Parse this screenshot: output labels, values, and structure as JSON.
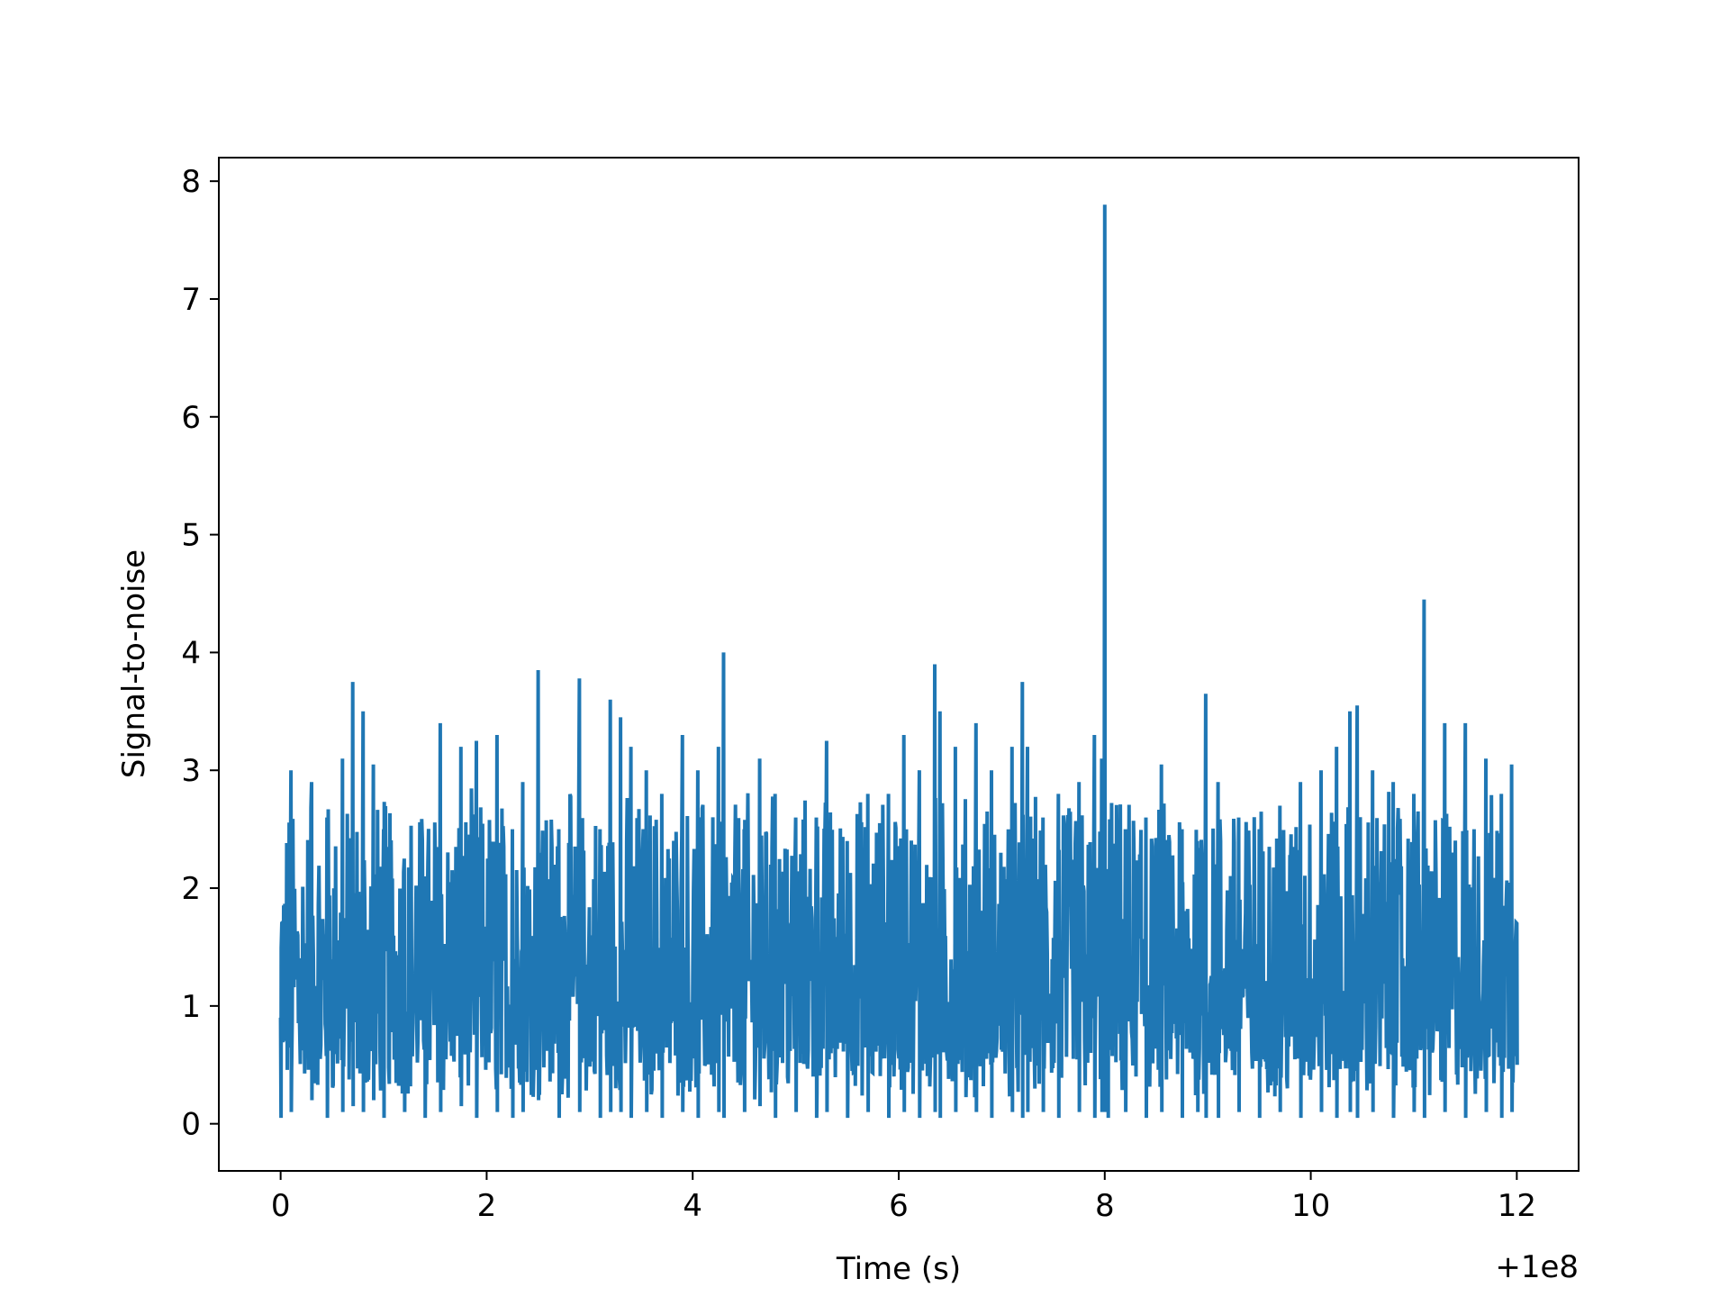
{
  "chart_data": {
    "type": "line",
    "title": "",
    "xlabel": "Time (s)",
    "ylabel": "Signal-to-noise",
    "x_offset_text": "+1e8",
    "x_offset": 100000000,
    "xlim": [
      -0.6,
      12.6
    ],
    "ylim": [
      -0.4,
      8.2
    ],
    "xticks": [
      0,
      2,
      4,
      6,
      8,
      10,
      12
    ],
    "xtick_labels": [
      "0",
      "2",
      "4",
      "6",
      "8",
      "10",
      "12"
    ],
    "yticks": [
      0,
      1,
      2,
      3,
      4,
      5,
      6,
      7,
      8
    ],
    "ytick_labels": [
      "0",
      "1",
      "2",
      "3",
      "4",
      "5",
      "6",
      "7",
      "8"
    ],
    "grid": false,
    "color": "#1f77b4",
    "series": [
      {
        "x": [
          0.0,
          0.1,
          0.3,
          0.45,
          0.6,
          0.7,
          0.8,
          0.9,
          1.0,
          1.2,
          1.4,
          1.55,
          1.75,
          1.9,
          2.1,
          2.25,
          2.35,
          2.5,
          2.7,
          2.9,
          3.1,
          3.2,
          3.3,
          3.4,
          3.55,
          3.7,
          3.9,
          4.05,
          4.25,
          4.3,
          4.5,
          4.65,
          4.8,
          5.0,
          5.2,
          5.3,
          5.5,
          5.7,
          5.9,
          6.05,
          6.2,
          6.35,
          6.4,
          6.55,
          6.75,
          6.9,
          7.1,
          7.2,
          7.25,
          7.4,
          7.55,
          7.75,
          7.9,
          7.97,
          8.0,
          8.03,
          8.2,
          8.4,
          8.55,
          8.75,
          8.9,
          8.98,
          9.1,
          9.3,
          9.5,
          9.7,
          9.9,
          10.1,
          10.25,
          10.38,
          10.45,
          10.6,
          10.8,
          11.0,
          11.1,
          11.3,
          11.5,
          11.7,
          11.85,
          11.95,
          12.0
        ],
        "y": [
          0.9,
          3.0,
          2.9,
          2.6,
          3.1,
          3.75,
          3.5,
          3.05,
          2.5,
          2.25,
          2.1,
          3.4,
          3.2,
          3.25,
          3.3,
          2.5,
          2.9,
          3.85,
          2.5,
          3.78,
          2.5,
          3.6,
          3.45,
          3.2,
          3.0,
          2.8,
          3.3,
          3.0,
          3.2,
          4.0,
          2.5,
          3.1,
          2.8,
          2.6,
          2.6,
          3.25,
          2.4,
          2.8,
          2.8,
          3.3,
          3.0,
          3.9,
          3.5,
          3.2,
          3.4,
          3.0,
          3.2,
          3.75,
          3.2,
          2.6,
          2.8,
          2.9,
          3.3,
          3.1,
          7.8,
          1.5,
          2.5,
          2.6,
          3.05,
          2.5,
          2.4,
          3.65,
          2.9,
          2.6,
          2.5,
          2.7,
          2.9,
          3.0,
          3.2,
          3.5,
          3.55,
          3.0,
          2.9,
          2.8,
          4.45,
          3.4,
          3.4,
          3.1,
          2.8,
          3.05,
          1.7
        ],
        "lows": [
          0.05,
          0.1,
          0.2,
          0.05,
          0.1,
          0.15,
          0.1,
          0.2,
          0.05,
          0.1,
          0.05,
          0.1,
          0.15,
          0.05,
          0.1,
          0.05,
          0.1,
          0.2,
          0.05,
          0.1,
          0.05,
          0.1,
          0.1,
          0.05,
          0.1,
          0.05,
          0.1,
          0.05,
          0.1,
          0.05,
          0.1,
          0.15,
          0.05,
          0.1,
          0.05,
          0.1,
          0.05,
          0.1,
          0.05,
          0.1,
          0.05,
          0.1,
          0.05,
          0.1,
          0.1,
          0.05,
          0.1,
          0.05,
          0.1,
          0.1,
          0.05,
          0.1,
          0.05,
          0.1,
          0.1,
          0.05,
          0.1,
          0.05,
          0.1,
          0.05,
          0.1,
          0.05,
          0.05,
          0.1,
          0.05,
          0.1,
          0.05,
          0.1,
          0.05,
          0.1,
          0.05,
          0.1,
          0.05,
          0.1,
          0.05,
          0.1,
          0.05,
          0.1,
          0.05,
          0.1,
          0.5
        ]
      }
    ]
  }
}
